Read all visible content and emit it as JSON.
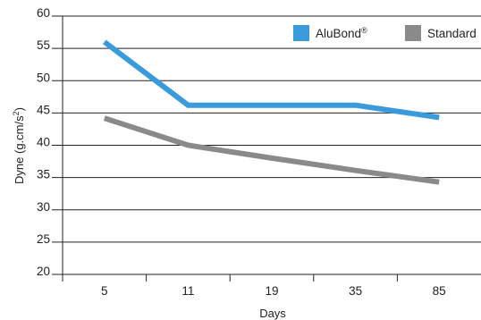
{
  "chart_data": {
    "type": "line",
    "categories": [
      "5",
      "11",
      "19",
      "35",
      "85"
    ],
    "series": [
      {
        "name": "AluBond",
        "name_suffix": "®",
        "color": "#3a9bdc",
        "values": [
          56,
          46.2,
          46.2,
          46.2,
          44.3
        ]
      },
      {
        "name": "Standard",
        "color": "#8a8a8a",
        "values": [
          44.2,
          40,
          38,
          36.1,
          34.3
        ]
      }
    ],
    "xlabel": "Days",
    "ylabel": "Dyne (g.cm/s",
    "ylabel_superscript": "2",
    "ylabel_suffix": ")",
    "ylim": [
      20,
      60
    ],
    "yticks": [
      20,
      25,
      30,
      35,
      40,
      45,
      50,
      55,
      60
    ],
    "grid": "horizontal",
    "legend_position": "top-right"
  }
}
